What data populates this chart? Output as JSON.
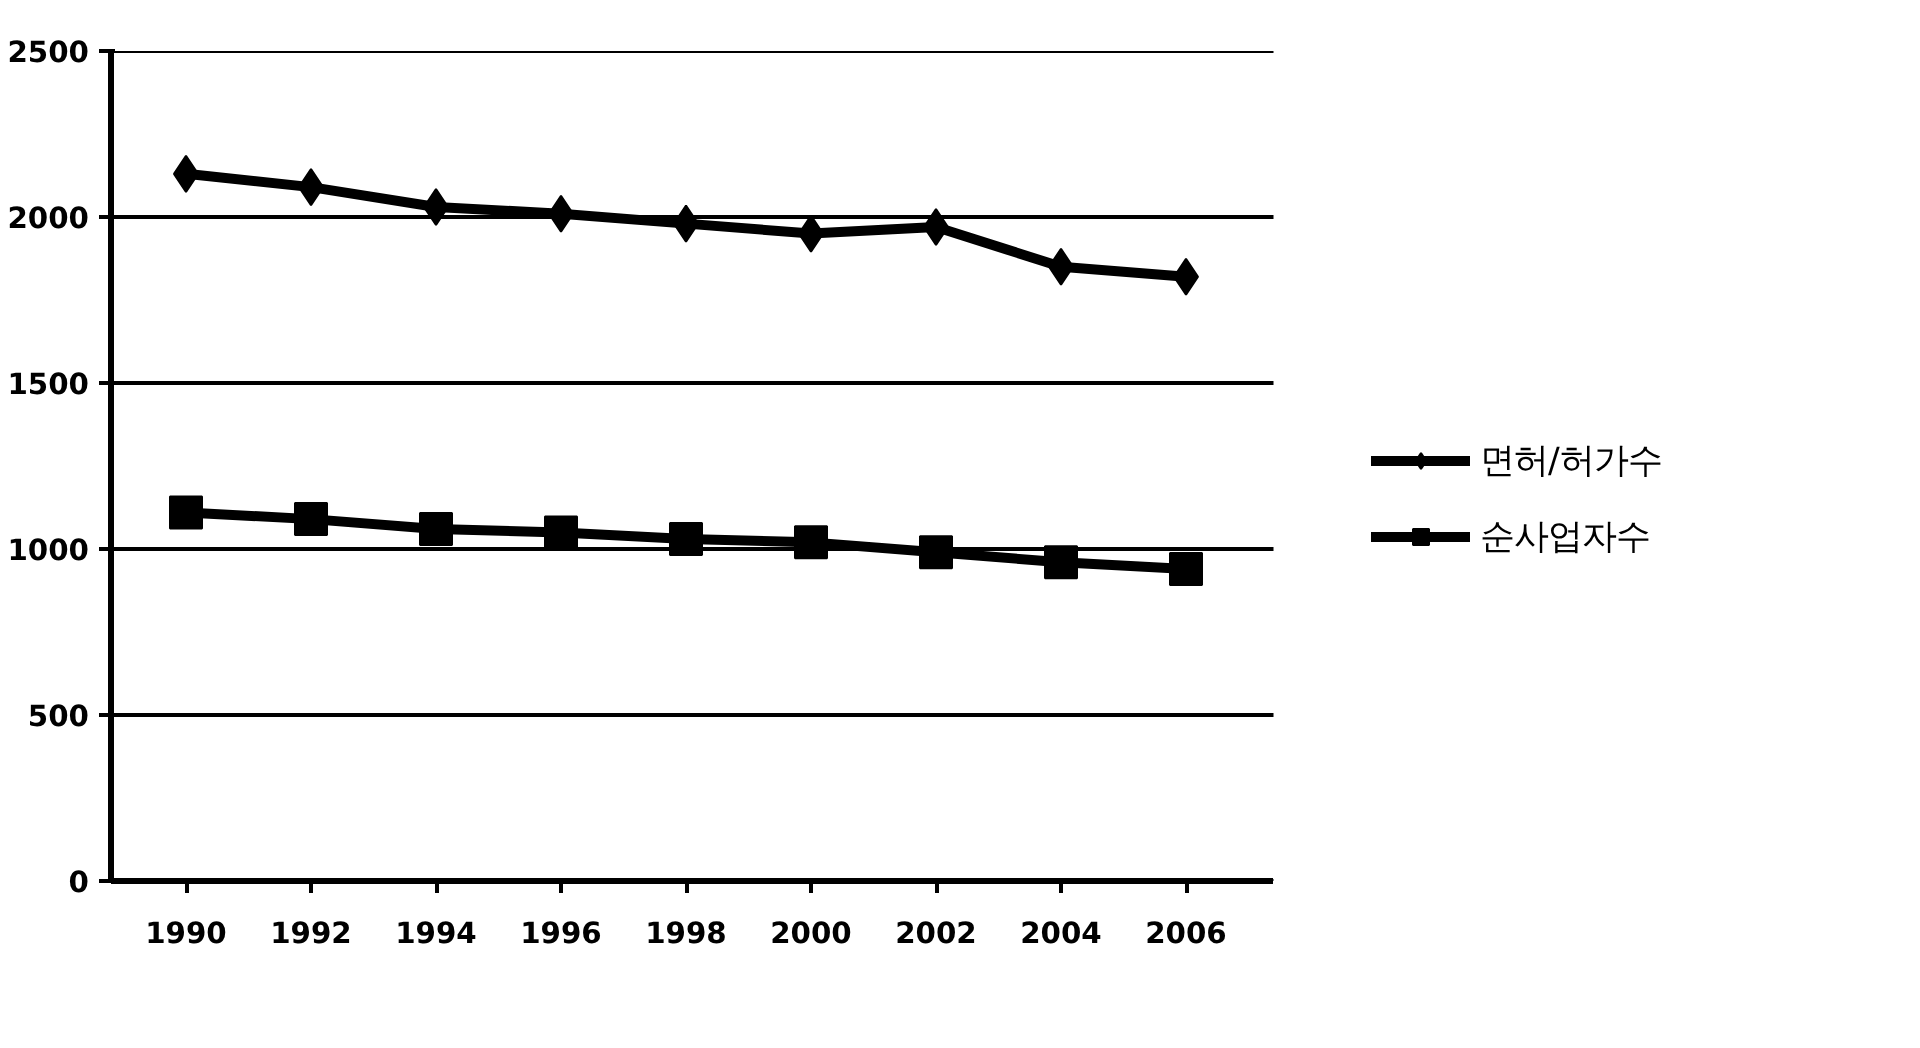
{
  "chart_data": {
    "type": "line",
    "categories": [
      "1990",
      "1992",
      "1994",
      "1996",
      "1998",
      "2000",
      "2002",
      "2004",
      "2006"
    ],
    "series": [
      {
        "name": "면허/허가수",
        "color": "#000000",
        "marker": "diamond",
        "values": [
          2130,
          2090,
          2030,
          2010,
          1980,
          1950,
          1970,
          1850,
          1820
        ]
      },
      {
        "name": "순사업자수",
        "color": "#000000",
        "marker": "square",
        "values": [
          1110,
          1090,
          1060,
          1050,
          1030,
          1020,
          990,
          960,
          940
        ]
      }
    ],
    "ylim": [
      0,
      2500
    ],
    "yticks": [
      0,
      500,
      1000,
      1500,
      2000,
      2500
    ],
    "grid": "y",
    "legend": "right",
    "line_style": "solid"
  }
}
